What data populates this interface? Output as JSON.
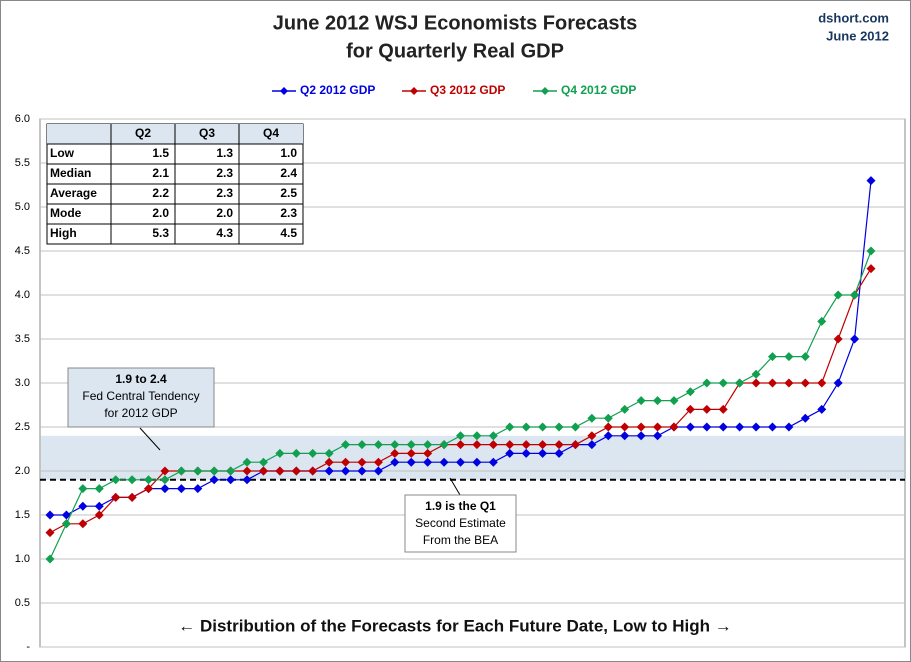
{
  "chart_data": {
    "type": "line",
    "title": [
      "June 2012 WSJ Economists Forecasts",
      "for Quarterly Real GDP"
    ],
    "source": [
      "dshort.com",
      "June 2012"
    ],
    "xlabel": "← Distribution  of the Forecasts for Each Future Date, Low to High →",
    "ylim": [
      0,
      6
    ],
    "yticks": [
      {
        "value": 0,
        "label": "-"
      },
      {
        "value": 0.5,
        "label": "0.5"
      },
      {
        "value": 1,
        "label": "1.0"
      },
      {
        "value": 1.5,
        "label": "1.5"
      },
      {
        "value": 2,
        "label": "2.0"
      },
      {
        "value": 2.5,
        "label": "2.5"
      },
      {
        "value": 3,
        "label": "3.0"
      },
      {
        "value": 3.5,
        "label": "3.5"
      },
      {
        "value": 4,
        "label": "4.0"
      },
      {
        "value": 4.5,
        "label": "4.5"
      },
      {
        "value": 5,
        "label": "5.0"
      },
      {
        "value": 5.5,
        "label": "5.5"
      },
      {
        "value": 6,
        "label": "6.0"
      }
    ],
    "grid": true,
    "band": [
      1.9,
      2.4
    ],
    "reference_line": 1.9,
    "annotations": [
      {
        "lines": [
          "1.9 to 2.4",
          "Fed Central Tendency",
          "for 2012 GDP"
        ]
      },
      {
        "lines": [
          "1.9 is the Q1",
          "Second Estimate",
          "From the BEA"
        ]
      }
    ],
    "series": [
      {
        "name": "Q2 2012 GDP",
        "color": "#0000e0",
        "values": [
          1.5,
          1.5,
          1.6,
          1.6,
          1.7,
          1.7,
          1.8,
          1.8,
          1.8,
          1.8,
          1.9,
          1.9,
          1.9,
          2.0,
          2.0,
          2.0,
          2.0,
          2.0,
          2.0,
          2.0,
          2.0,
          2.1,
          2.1,
          2.1,
          2.1,
          2.1,
          2.1,
          2.1,
          2.2,
          2.2,
          2.2,
          2.2,
          2.3,
          2.3,
          2.4,
          2.4,
          2.4,
          2.4,
          2.5,
          2.5,
          2.5,
          2.5,
          2.5,
          2.5,
          2.5,
          2.5,
          2.6,
          2.7,
          3.0,
          3.5,
          5.3
        ]
      },
      {
        "name": "Q3 2012 GDP",
        "color": "#c00000",
        "values": [
          1.3,
          1.4,
          1.4,
          1.5,
          1.7,
          1.7,
          1.8,
          2.0,
          2.0,
          2.0,
          2.0,
          2.0,
          2.0,
          2.0,
          2.0,
          2.0,
          2.0,
          2.1,
          2.1,
          2.1,
          2.1,
          2.2,
          2.2,
          2.2,
          2.3,
          2.3,
          2.3,
          2.3,
          2.3,
          2.3,
          2.3,
          2.3,
          2.3,
          2.4,
          2.5,
          2.5,
          2.5,
          2.5,
          2.5,
          2.7,
          2.7,
          2.7,
          3.0,
          3.0,
          3.0,
          3.0,
          3.0,
          3.0,
          3.5,
          4.0,
          4.3
        ]
      },
      {
        "name": "Q4 2012 GDP",
        "color": "#10a050",
        "values": [
          1.0,
          1.4,
          1.8,
          1.8,
          1.9,
          1.9,
          1.9,
          1.9,
          2.0,
          2.0,
          2.0,
          2.0,
          2.1,
          2.1,
          2.2,
          2.2,
          2.2,
          2.2,
          2.3,
          2.3,
          2.3,
          2.3,
          2.3,
          2.3,
          2.3,
          2.4,
          2.4,
          2.4,
          2.5,
          2.5,
          2.5,
          2.5,
          2.5,
          2.6,
          2.6,
          2.7,
          2.8,
          2.8,
          2.8,
          2.9,
          3.0,
          3.0,
          3.0,
          3.1,
          3.3,
          3.3,
          3.3,
          3.7,
          4.0,
          4.0,
          4.5
        ]
      }
    ],
    "table": {
      "header": [
        "Q2",
        "Q3",
        "Q4"
      ],
      "rows": [
        [
          "Low",
          "1.5",
          "1.3",
          "1.0"
        ],
        [
          "Median",
          "2.1",
          "2.3",
          "2.4"
        ],
        [
          "Average",
          "2.2",
          "2.3",
          "2.5"
        ],
        [
          "Mode",
          "2.0",
          "2.0",
          "2.3"
        ],
        [
          "High",
          "5.3",
          "4.3",
          "4.5"
        ]
      ]
    }
  }
}
